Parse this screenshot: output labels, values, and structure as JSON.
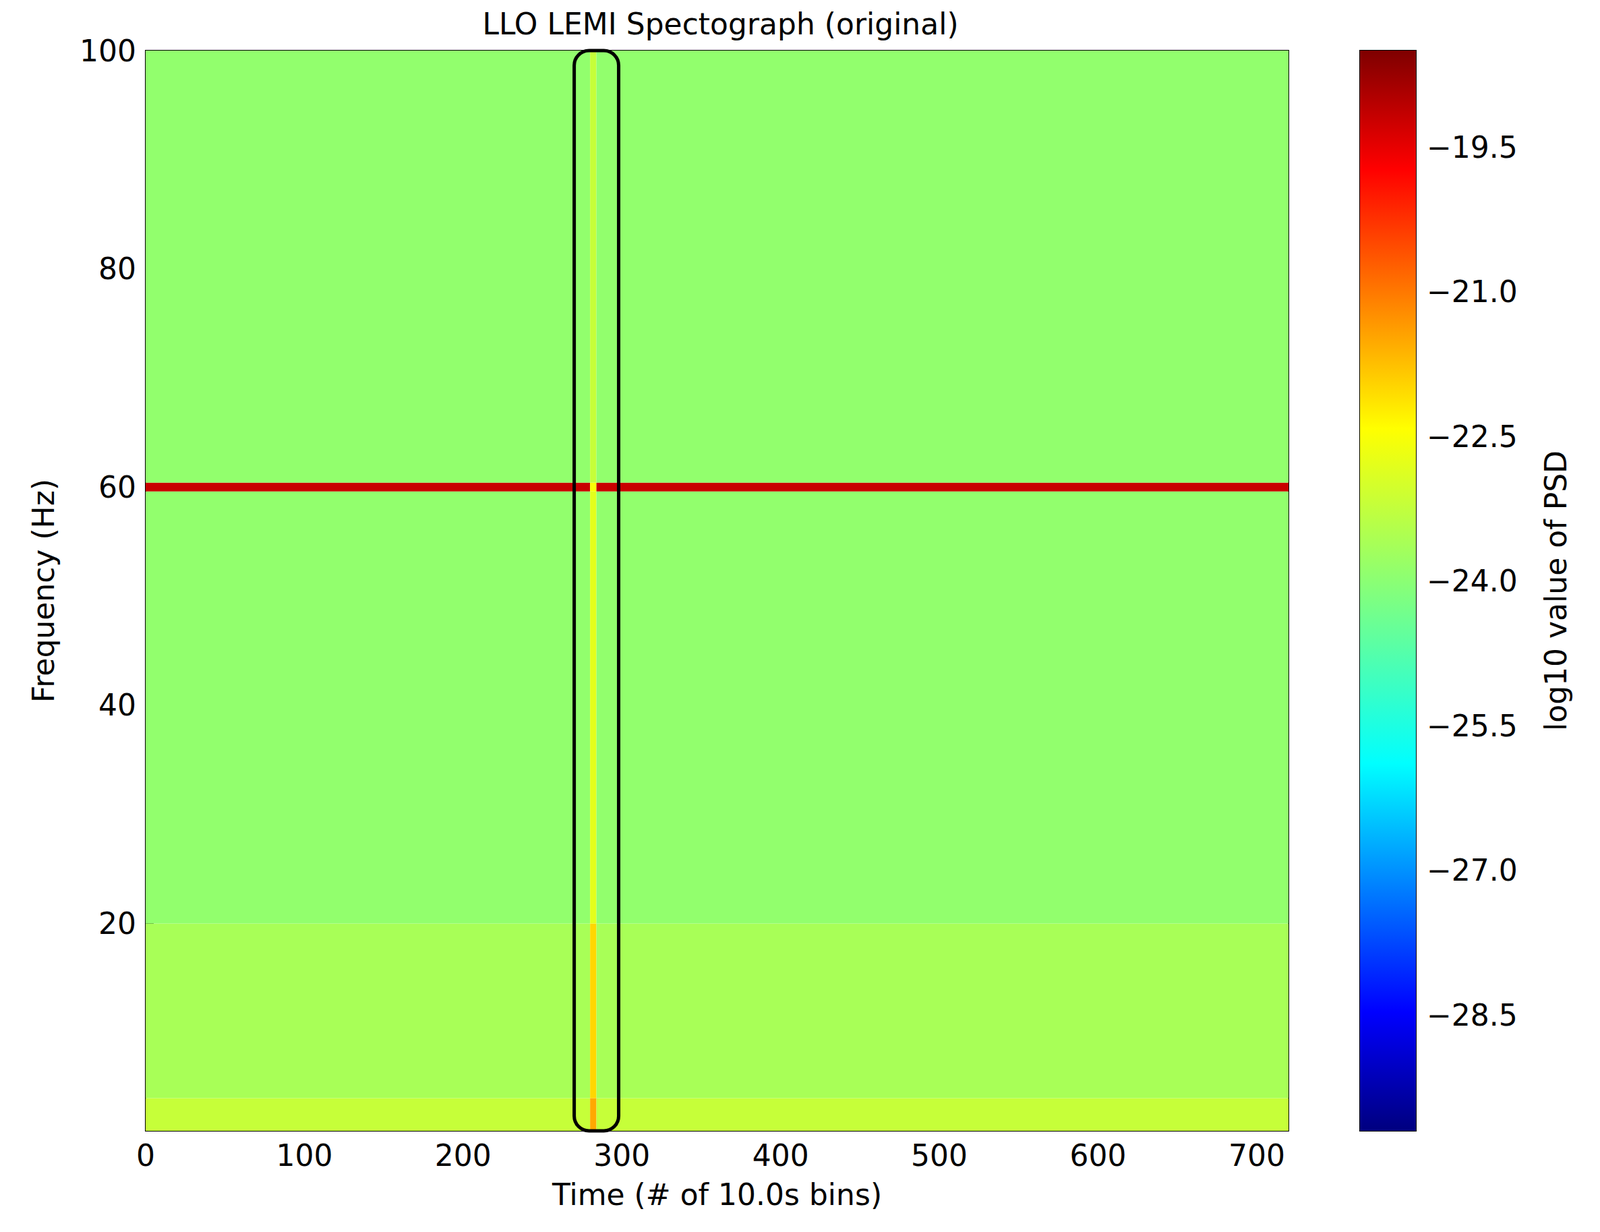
{
  "chart_data": {
    "type": "heatmap",
    "title": "LLO LEMI Spectograph (original)",
    "x_label": "Time (# of 10.0s bins)",
    "y_label": "Frequency (Hz)",
    "xlim": [
      0,
      720
    ],
    "xticks": [
      0,
      100,
      200,
      300,
      400,
      500,
      600,
      700
    ],
    "ylim": [
      1,
      100
    ],
    "yticks": [
      20,
      40,
      60,
      80,
      100
    ],
    "time_edges": [
      0,
      280,
      284,
      720
    ],
    "frequency_edges": [
      1,
      4,
      20,
      59.6,
      60.4,
      100
    ],
    "cells": [
      [
        -23.2,
        -21.5,
        -23.2
      ],
      [
        -23.6,
        -22.0,
        -23.6
      ],
      [
        -23.9,
        -22.8,
        -23.9
      ],
      [
        -19.2,
        -22.5,
        -19.2
      ],
      [
        -23.9,
        -23.2,
        -23.9
      ]
    ],
    "colorbar": {
      "label": "log10 value of PSD",
      "range": [
        -29.7,
        -18.5
      ],
      "ticks": [
        {
          "value": -28.5,
          "label": "−28.5"
        },
        {
          "value": -27,
          "label": "−27.0"
        },
        {
          "value": -25.5,
          "label": "−25.5"
        },
        {
          "value": -24,
          "label": "−24.0"
        },
        {
          "value": -22.5,
          "label": "−22.5"
        },
        {
          "value": -21,
          "label": "−21.0"
        },
        {
          "value": -19.5,
          "label": "−19.5"
        }
      ]
    },
    "annotations": [
      {
        "shape": "box",
        "x": [
          270,
          298
        ],
        "y": [
          1,
          100
        ]
      }
    ]
  }
}
